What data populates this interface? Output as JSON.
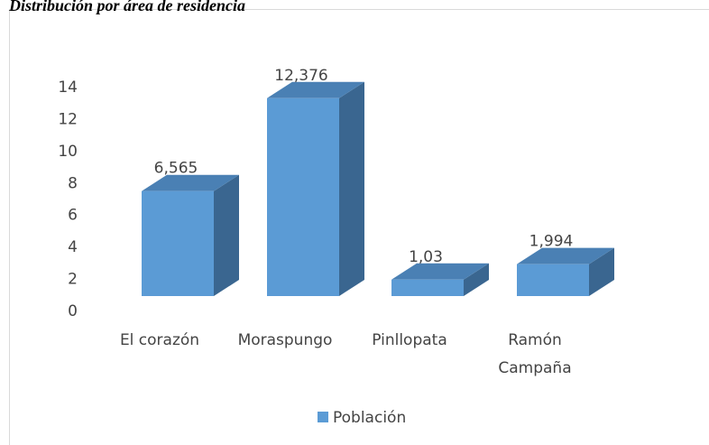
{
  "chart_data": {
    "type": "bar3d",
    "title": "Distribución por área de residencia",
    "categories": [
      "El corazón",
      "Moraspungo",
      "Pinllopata",
      "Ramón Campaña"
    ],
    "series": [
      {
        "name": "Población",
        "color": "#5b9bd5",
        "values": [
          6.565,
          12.376,
          1.03,
          1.994
        ],
        "value_labels": [
          "6,565",
          "12,376",
          "1,03",
          "1,994"
        ]
      }
    ],
    "ylim": [
      0,
      14
    ],
    "yticks": [
      0,
      2,
      4,
      6,
      8,
      10,
      12,
      14
    ],
    "legend": "bottom"
  }
}
